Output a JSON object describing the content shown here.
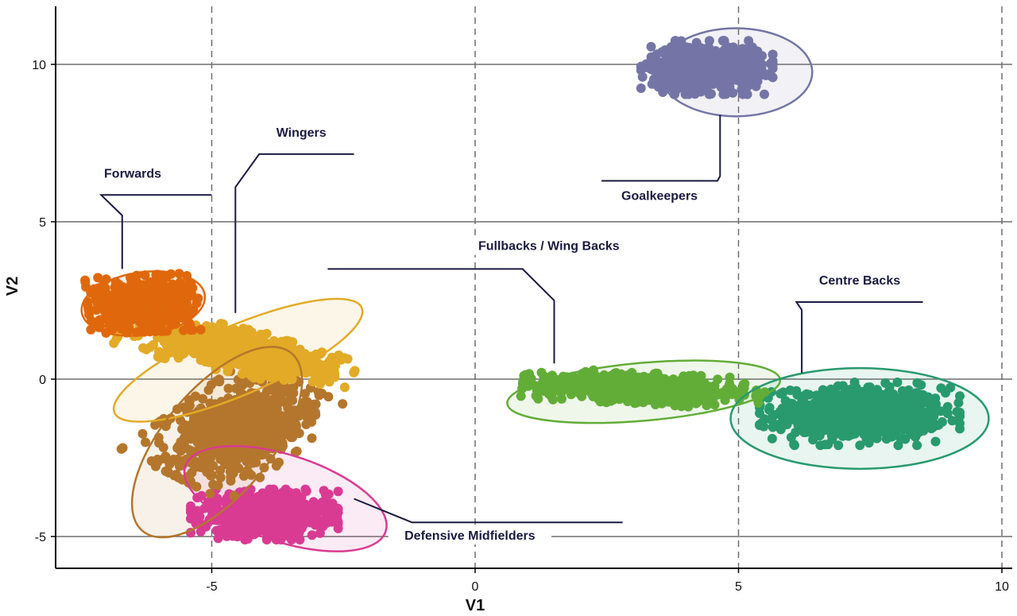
{
  "chart_data": {
    "type": "scatter",
    "title": "",
    "xlabel": "V1",
    "ylabel": "V2",
    "xlim": [
      -8,
      10.3
    ],
    "ylim": [
      -6.1,
      11.9
    ],
    "x_ticks": [
      -5,
      0,
      5,
      10
    ],
    "x_tick_labels": [
      "-5",
      "0",
      "5",
      "10"
    ],
    "y_ticks": [
      -5,
      0,
      5,
      10
    ],
    "y_tick_labels": [
      "-5",
      "0",
      "5",
      "10"
    ],
    "grid": {
      "horizontal": "solid",
      "vertical": "dashed"
    },
    "legend": "none",
    "series": [
      {
        "name": "Forwards",
        "color": "#e0680c",
        "center": [
          -6.3,
          2.4
        ],
        "x_spread": 1.05,
        "y_spread": 0.9,
        "tilt_deg": 4,
        "ellipse": {
          "cx": -6.3,
          "cy": 2.4,
          "rx": 1.18,
          "ry": 1.0,
          "angle_deg": -8
        }
      },
      {
        "name": "Wingers",
        "color": "#e2aa26",
        "center": [
          -4.5,
          0.9
        ],
        "x_spread": 2.3,
        "y_spread": 0.7,
        "tilt_deg": -20,
        "ellipse": {
          "cx": -4.5,
          "cy": 0.6,
          "rx": 2.55,
          "ry": 1.1,
          "angle_deg": -23
        }
      },
      {
        "name": "Defensive Midfielders",
        "color": "#d93b93",
        "center": [
          -4.0,
          -4.3
        ],
        "x_spread": 1.4,
        "y_spread": 0.8,
        "tilt_deg": 0,
        "ellipse": {
          "cx": -3.6,
          "cy": -3.8,
          "rx": 2.0,
          "ry": 1.38,
          "angle_deg": 18
        }
      },
      {
        "name": "",
        "color": "#b4762c",
        "center": [
          -4.5,
          -1.6
        ],
        "x_spread": 1.3,
        "y_spread": 1.9,
        "tilt_deg": -40,
        "ellipse": {
          "cx": -4.9,
          "cy": -2.0,
          "rx": 2.2,
          "ry": 1.7,
          "angle_deg": -50
        }
      },
      {
        "name": "Fullbacks / Wing Backs",
        "color": "#62ad37",
        "center": [
          3.2,
          -0.3
        ],
        "x_spread": 2.3,
        "y_spread": 0.5,
        "tilt_deg": -5,
        "ellipse": {
          "cx": 3.2,
          "cy": -0.4,
          "rx": 2.6,
          "ry": 0.92,
          "angle_deg": -5
        }
      },
      {
        "name": "Centre Backs",
        "color": "#289a6e",
        "center": [
          7.3,
          -1.1
        ],
        "x_spread": 1.9,
        "y_spread": 1.0,
        "tilt_deg": 0,
        "ellipse": {
          "cx": 7.3,
          "cy": -1.25,
          "rx": 2.45,
          "ry": 1.6,
          "angle_deg": 0
        }
      },
      {
        "name": "Goalkeepers",
        "color": "#7475a6",
        "center": [
          4.4,
          9.9
        ],
        "x_spread": 1.25,
        "y_spread": 0.85,
        "tilt_deg": 0,
        "ellipse": {
          "cx": 4.95,
          "cy": 9.75,
          "rx": 1.45,
          "ry": 1.4,
          "angle_deg": 0
        }
      }
    ],
    "annotations": [
      {
        "text": "Forwards",
        "label_x": -6.5,
        "label_y": 6.4,
        "line": [
          [
            -7.1,
            5.85
          ],
          [
            -5.0,
            5.85
          ],
          [
            -7.1,
            5.85
          ],
          [
            -6.7,
            5.2
          ],
          [
            -6.7,
            3.5
          ]
        ]
      },
      {
        "text": "Wingers",
        "label_x": -3.3,
        "label_y": 7.7,
        "line": [
          [
            -2.3,
            7.15
          ],
          [
            -4.1,
            7.15
          ],
          [
            -4.55,
            6.1
          ],
          [
            -4.55,
            2.1
          ]
        ]
      },
      {
        "text": "Goalkeepers",
        "label_x": 3.5,
        "label_y": 5.7,
        "line": [
          [
            2.4,
            6.3
          ],
          [
            4.6,
            6.3
          ],
          [
            4.65,
            6.45
          ],
          [
            4.65,
            8.4
          ]
        ]
      },
      {
        "text": "Fullbacks / Wing Backs",
        "label_x": 1.4,
        "label_y": 4.1,
        "line": [
          [
            -2.8,
            3.5
          ],
          [
            0.9,
            3.5
          ],
          [
            1.5,
            2.5
          ],
          [
            1.5,
            0.5
          ]
        ]
      },
      {
        "text": "Centre Backs",
        "label_x": 7.3,
        "label_y": 3.0,
        "line": [
          [
            8.5,
            2.45
          ],
          [
            6.1,
            2.45
          ],
          [
            6.2,
            2.2
          ],
          [
            6.2,
            0.2
          ]
        ]
      },
      {
        "text": "Defensive Midfielders",
        "label_x": -0.1,
        "label_y": -5.1,
        "line": [
          [
            -2.3,
            -3.8
          ],
          [
            -1.2,
            -4.55
          ],
          [
            2.8,
            -4.55
          ]
        ]
      }
    ]
  }
}
